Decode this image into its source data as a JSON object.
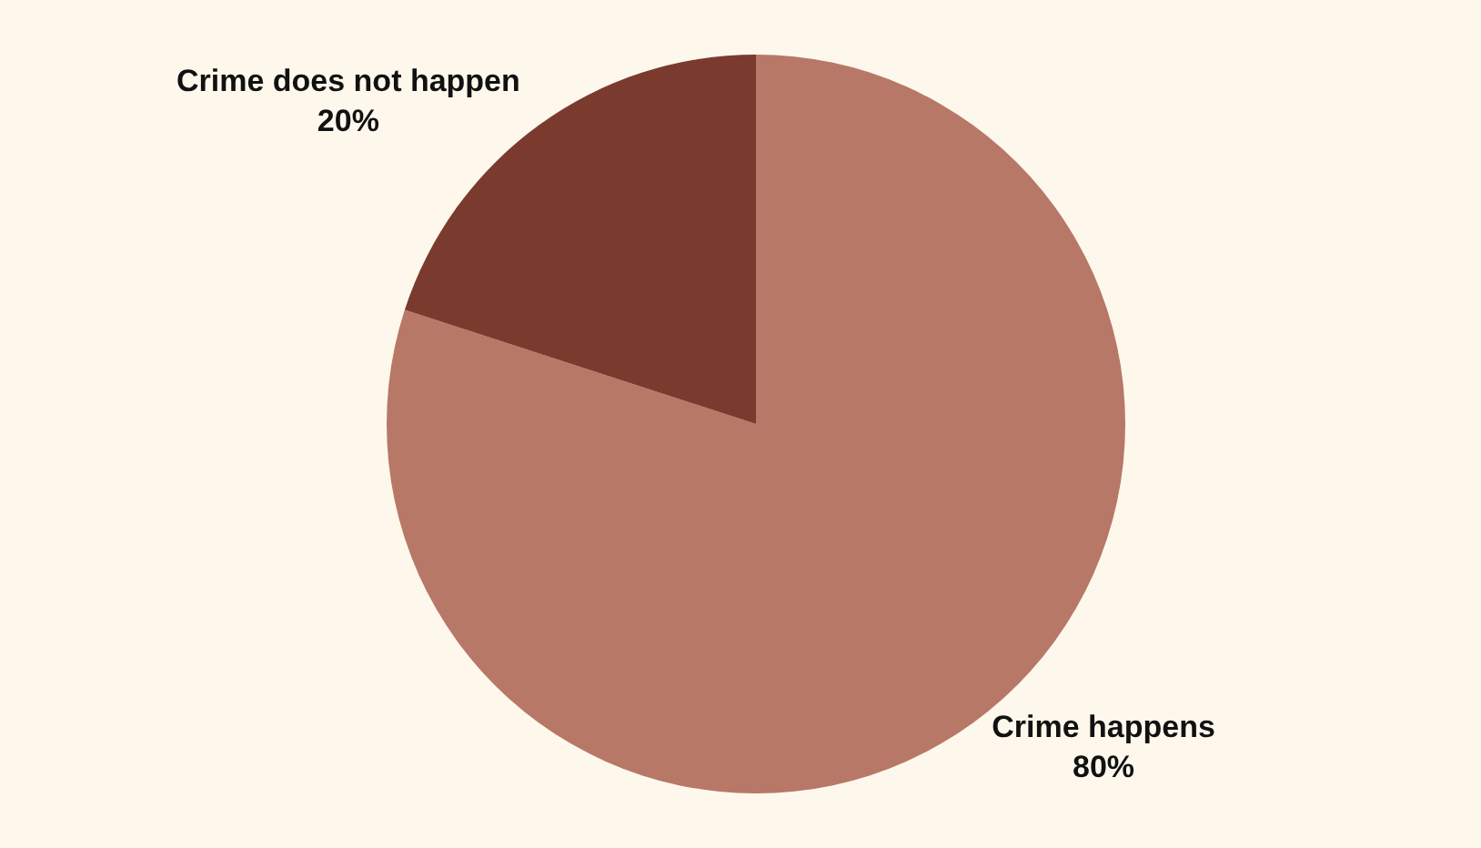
{
  "chart_data": {
    "type": "pie",
    "categories": [
      "Crime happens",
      "Crime does not happen"
    ],
    "values": [
      80,
      20
    ],
    "value_labels": [
      "80%",
      "20%"
    ],
    "colors": [
      "#b87868",
      "#7a3b2e"
    ],
    "legend": false
  }
}
